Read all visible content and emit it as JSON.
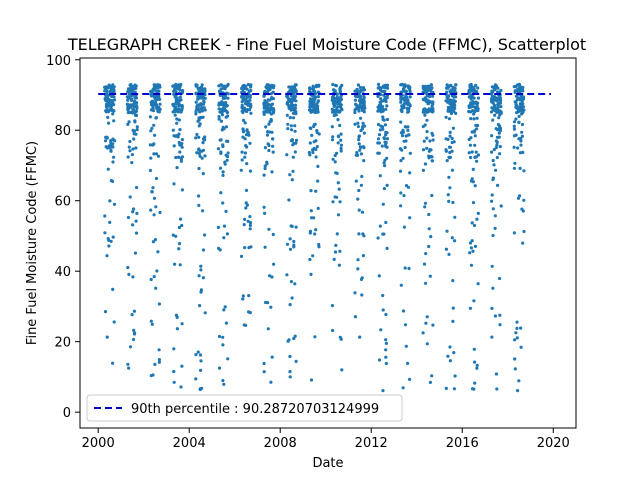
{
  "chart_data": {
    "type": "scatter",
    "title": "TELEGRAPH CREEK - Fine Fuel Moisture Code (FFMC), Scatterplot",
    "xlabel": "Date",
    "ylabel": "Fine Fuel Moisture Code (FFMC)",
    "xlim": [
      1999.2,
      2021.0
    ],
    "ylim": [
      -4.5,
      100.5
    ],
    "x_ticks": [
      2000,
      2004,
      2008,
      2012,
      2016,
      2020
    ],
    "y_ticks": [
      0,
      20,
      40,
      60,
      80,
      100
    ],
    "grid": false,
    "legend_position": "lower-left",
    "point_color": "#1f77b4",
    "percentile_line": {
      "label": "90th percentile : 90.28720703124999",
      "value": 90.28720703124999,
      "x_range": [
        2000.0,
        2019.9
      ],
      "color": "#0000cc"
    },
    "seasons": [
      2000,
      2001,
      2002,
      2003,
      2004,
      2005,
      2006,
      2007,
      2008,
      2009,
      2010,
      2011,
      2012,
      2013,
      2014,
      2015,
      2016,
      2017,
      2018
    ],
    "season_span": [
      0.28,
      0.72
    ],
    "points_per_season": 110,
    "season_range": [
      85,
      93
    ]
  }
}
